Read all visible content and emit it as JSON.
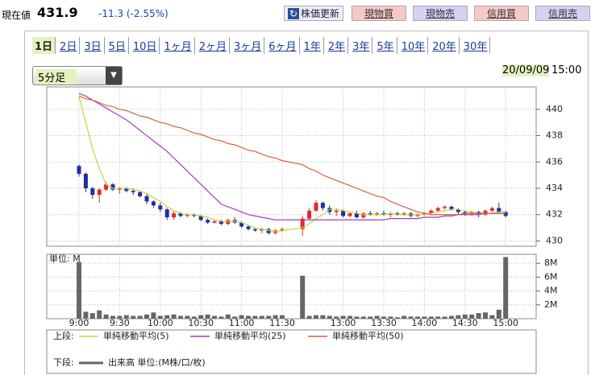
{
  "header": {
    "price_label": "現在値",
    "price": "431.9",
    "change": "-11.3 (-2.55%)",
    "refresh": "株価更新",
    "buttons": [
      "現物買",
      "現物売",
      "信用買",
      "信用売"
    ]
  },
  "tabs": [
    "1日",
    "2日",
    "3日",
    "5日",
    "10日",
    "1ヶ月",
    "2ヶ月",
    "3ヶ月",
    "6ヶ月",
    "1年",
    "2年",
    "3年",
    "5年",
    "10年",
    "20年",
    "30年"
  ],
  "interval": "5分足",
  "date": "20/09/09",
  "time": "15:00",
  "legend": {
    "upper": "上段:",
    "lower": "下段:"
  },
  "chart_data": [
    {
      "type": "candlestick",
      "ylim": [
        429.6,
        441.7
      ],
      "yticks": [
        430,
        432,
        434,
        436,
        438,
        440
      ],
      "grid": true,
      "up_color": "#e02a2a",
      "down_color": "#1f2f9f",
      "open": [
        435.7,
        435.1,
        434.0,
        433.5,
        433.9,
        434.3,
        433.9,
        434.0,
        433.8,
        433.7,
        433.4,
        433.0,
        432.7,
        432.4,
        431.8,
        432.1,
        431.9,
        432.0,
        431.9,
        431.6,
        431.4,
        431.5,
        431.3,
        431.6,
        431.4,
        431.1,
        430.9,
        430.8,
        430.9,
        430.6,
        430.8,
        430.9,
        431.7,
        432.3,
        432.9,
        432.5,
        432.2,
        432.3,
        431.9,
        432.1,
        431.8,
        432.1,
        432.0,
        432.1,
        432.0,
        432.1,
        432.0,
        432.1,
        431.9,
        432.0,
        432.1,
        432.3,
        432.5,
        432.6,
        432.4,
        432.2,
        432.1,
        432.2,
        432.0,
        432.3,
        432.5,
        432.2
      ],
      "high": [
        435.8,
        435.2,
        434.1,
        434.0,
        434.5,
        434.4,
        434.1,
        434.1,
        434.0,
        433.8,
        433.6,
        433.1,
        432.9,
        432.5,
        432.3,
        432.2,
        432.1,
        432.1,
        432.0,
        431.7,
        431.6,
        431.6,
        431.7,
        431.8,
        431.5,
        431.2,
        431.0,
        431.0,
        431.0,
        430.9,
        431.0,
        431.9,
        432.5,
        433.1,
        433.0,
        432.7,
        432.5,
        432.4,
        432.2,
        432.3,
        432.2,
        432.3,
        432.2,
        432.3,
        432.2,
        432.2,
        432.2,
        432.2,
        432.1,
        432.2,
        432.4,
        432.6,
        432.7,
        432.7,
        432.5,
        432.3,
        432.3,
        432.3,
        432.4,
        432.6,
        432.9,
        432.3
      ],
      "low": [
        434.9,
        433.7,
        433.2,
        432.9,
        433.8,
        433.8,
        433.6,
        433.7,
        433.5,
        433.3,
        432.8,
        432.5,
        432.2,
        431.6,
        431.6,
        431.8,
        431.8,
        431.8,
        431.5,
        431.3,
        431.3,
        431.2,
        431.2,
        431.3,
        431.0,
        430.8,
        430.7,
        430.6,
        430.5,
        430.5,
        430.7,
        430.4,
        431.6,
        432.2,
        432.3,
        432.0,
        431.9,
        431.8,
        431.8,
        431.7,
        431.7,
        431.9,
        431.9,
        431.9,
        431.8,
        431.9,
        431.9,
        431.8,
        431.8,
        431.9,
        432.0,
        432.2,
        432.4,
        432.3,
        432.0,
        431.9,
        431.9,
        431.8,
        431.9,
        432.2,
        432.1,
        431.8
      ],
      "close": [
        435.1,
        434.0,
        433.5,
        433.9,
        434.3,
        433.9,
        434.0,
        433.8,
        433.7,
        433.4,
        433.0,
        432.7,
        432.4,
        431.8,
        432.1,
        431.9,
        432.0,
        431.9,
        431.6,
        431.4,
        431.5,
        431.3,
        431.6,
        431.4,
        431.1,
        430.9,
        430.8,
        430.9,
        430.6,
        430.8,
        430.9,
        431.7,
        432.3,
        432.9,
        432.5,
        432.2,
        432.3,
        431.9,
        432.1,
        431.8,
        432.1,
        432.0,
        432.1,
        432.0,
        432.1,
        432.0,
        432.1,
        431.9,
        432.0,
        432.1,
        432.3,
        432.5,
        432.6,
        432.4,
        432.2,
        432.1,
        432.2,
        432.0,
        432.3,
        432.5,
        432.2,
        431.9
      ],
      "series": [
        {
          "name": "単純移動平均(5)",
          "color": "#c5d63c",
          "values": [
            441.0,
            439.0,
            437.0,
            435.5,
            434.3,
            434.0,
            434.0,
            434.0,
            433.9,
            433.8,
            433.6,
            433.3,
            433.0,
            432.6,
            432.3,
            432.1,
            432.0,
            432.0,
            431.9,
            431.8,
            431.6,
            431.5,
            431.5,
            431.5,
            431.4,
            431.2,
            431.0,
            430.9,
            430.8,
            430.7,
            430.8,
            431.0,
            431.3,
            431.7,
            432.0,
            432.4,
            432.4,
            432.3,
            432.2,
            432.1,
            432.0,
            432.0,
            432.0,
            432.0,
            432.1,
            432.0,
            432.0,
            432.0,
            432.0,
            432.0,
            432.1,
            432.2,
            432.3,
            432.4,
            432.4,
            432.3,
            432.2,
            432.1,
            432.1,
            432.1,
            432.2,
            432.2
          ]
        },
        {
          "name": "単純移動平均(25)",
          "color": "#a43cc4",
          "values": [
            441.2,
            441.0,
            440.7,
            440.4,
            440.1,
            439.8,
            439.5,
            439.2,
            438.8,
            438.4,
            438.0,
            437.6,
            437.2,
            436.8,
            436.3,
            435.8,
            435.3,
            434.8,
            434.3,
            433.8,
            433.3,
            432.8,
            432.6,
            432.4,
            432.2,
            432.0,
            431.9,
            431.8,
            431.7,
            431.6,
            431.6,
            431.6,
            431.6,
            431.6,
            431.6,
            431.6,
            431.6,
            431.6,
            431.6,
            431.6,
            431.6,
            431.6,
            431.6,
            431.6,
            431.7,
            431.7,
            431.7,
            431.7,
            431.7,
            431.8,
            431.8,
            431.8,
            431.9,
            431.9,
            432.0,
            432.0,
            432.0,
            432.0,
            432.1,
            432.1,
            432.1,
            432.1
          ]
        },
        {
          "name": "単純移動平均(50)",
          "color": "#d2643c",
          "values": [
            441.0,
            440.8,
            440.7,
            440.5,
            440.3,
            440.2,
            440.0,
            439.9,
            439.7,
            439.5,
            439.4,
            439.2,
            439.0,
            438.9,
            438.7,
            438.6,
            438.4,
            438.2,
            438.1,
            437.9,
            437.7,
            437.6,
            437.4,
            437.3,
            437.1,
            436.9,
            436.8,
            436.6,
            436.4,
            436.3,
            436.1,
            435.8,
            435.5,
            435.3,
            435.0,
            434.8,
            434.6,
            434.4,
            434.2,
            434.0,
            433.8,
            433.6,
            433.4,
            433.3,
            433.0,
            432.8,
            432.6,
            432.4,
            432.2,
            432.1,
            432.0,
            432.0,
            432.0,
            432.0,
            432.0,
            432.1,
            432.1,
            432.1,
            432.1,
            432.1,
            432.1,
            432.1
          ]
        }
      ]
    },
    {
      "type": "bar",
      "unit_label": "単位: M",
      "ylim": [
        0,
        9.3
      ],
      "yticks": [
        {
          "value": 2,
          "label": "2M"
        },
        {
          "value": 4,
          "label": "4M"
        },
        {
          "value": 6,
          "label": "6M"
        },
        {
          "value": 8,
          "label": "8M"
        }
      ],
      "grid": true,
      "categories": [
        "9:00",
        null,
        null,
        null,
        null,
        null,
        "9:30",
        null,
        null,
        null,
        null,
        null,
        "10:00",
        null,
        null,
        null,
        null,
        null,
        "10:30",
        null,
        null,
        null,
        null,
        null,
        "11:00",
        null,
        null,
        null,
        null,
        null,
        "11:30",
        null,
        null,
        null,
        null,
        null,
        null,
        "13:00",
        null,
        null,
        null,
        null,
        null,
        "13:30",
        null,
        null,
        null,
        null,
        null,
        "14:00",
        null,
        null,
        null,
        null,
        null,
        "14:30",
        null,
        null,
        null,
        null,
        null,
        "15:00"
      ],
      "series": [
        {
          "name": "出来高 単位:(M株/口/枚)",
          "color": "#666666",
          "values": [
            8.2,
            1.0,
            0.8,
            1.2,
            0.6,
            0.4,
            0.4,
            0.5,
            0.4,
            0.4,
            0.6,
            0.9,
            0.4,
            0.5,
            0.6,
            0.4,
            0.4,
            0.3,
            0.5,
            0.6,
            0.4,
            0.3,
            0.6,
            0.3,
            0.5,
            0.4,
            0.4,
            0.4,
            0.4,
            0.5,
            0.5,
            6.2,
            0.4,
            0.5,
            0.5,
            0.4,
            0.3,
            0.4,
            0.4,
            0.3,
            0.3,
            0.3,
            0.4,
            0.3,
            0.3,
            0.2,
            0.4,
            0.3,
            0.3,
            0.3,
            0.3,
            0.3,
            0.3,
            0.4,
            0.5,
            0.6,
            0.6,
            0.8,
            0.9,
            0.5,
            1.3,
            8.9
          ]
        }
      ]
    }
  ]
}
